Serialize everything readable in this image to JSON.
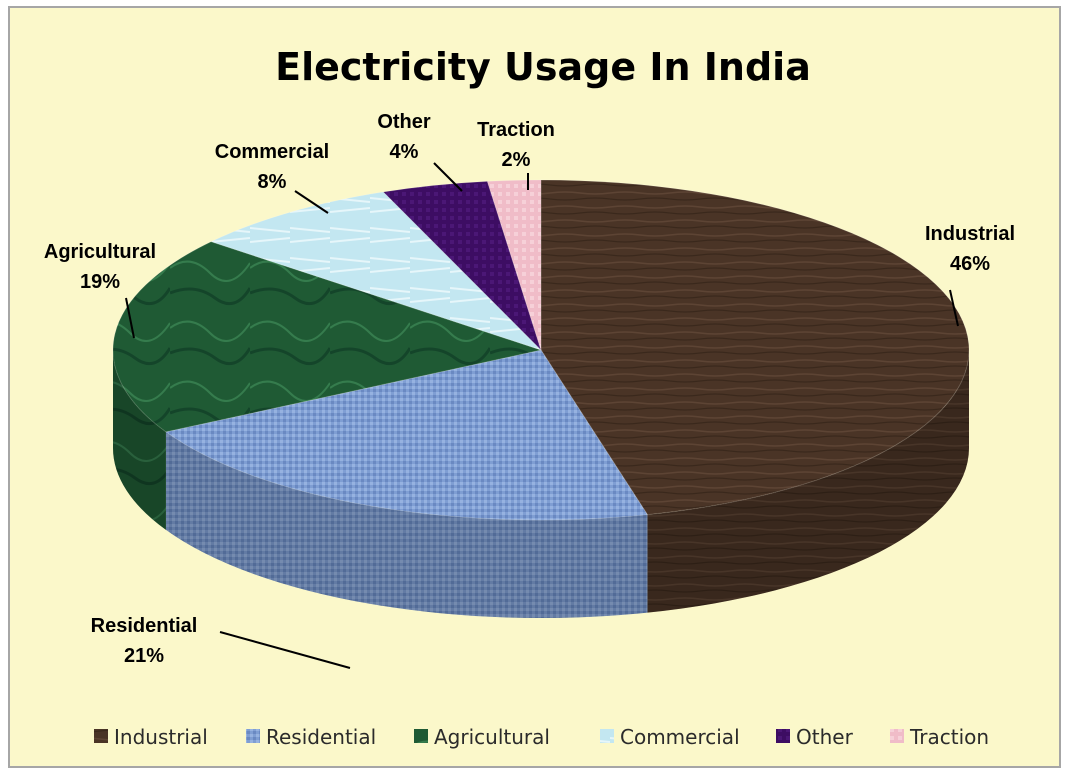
{
  "chart_data": {
    "type": "pie",
    "title": "Electricity Usage In India",
    "categories": [
      "Industrial",
      "Residential",
      "Agricultural",
      "Commercial",
      "Other",
      "Traction"
    ],
    "values": [
      46,
      21,
      19,
      8,
      4,
      2
    ],
    "value_labels": [
      "46%",
      "21%",
      "19%",
      "8%",
      "4%",
      "2%"
    ],
    "colors": [
      "#4a3426",
      "#7f9ed3",
      "#1f5a34",
      "#bfe6f0",
      "#3d0d63",
      "#f0bcc8"
    ],
    "legend_position": "bottom",
    "style": "3d-textured"
  }
}
